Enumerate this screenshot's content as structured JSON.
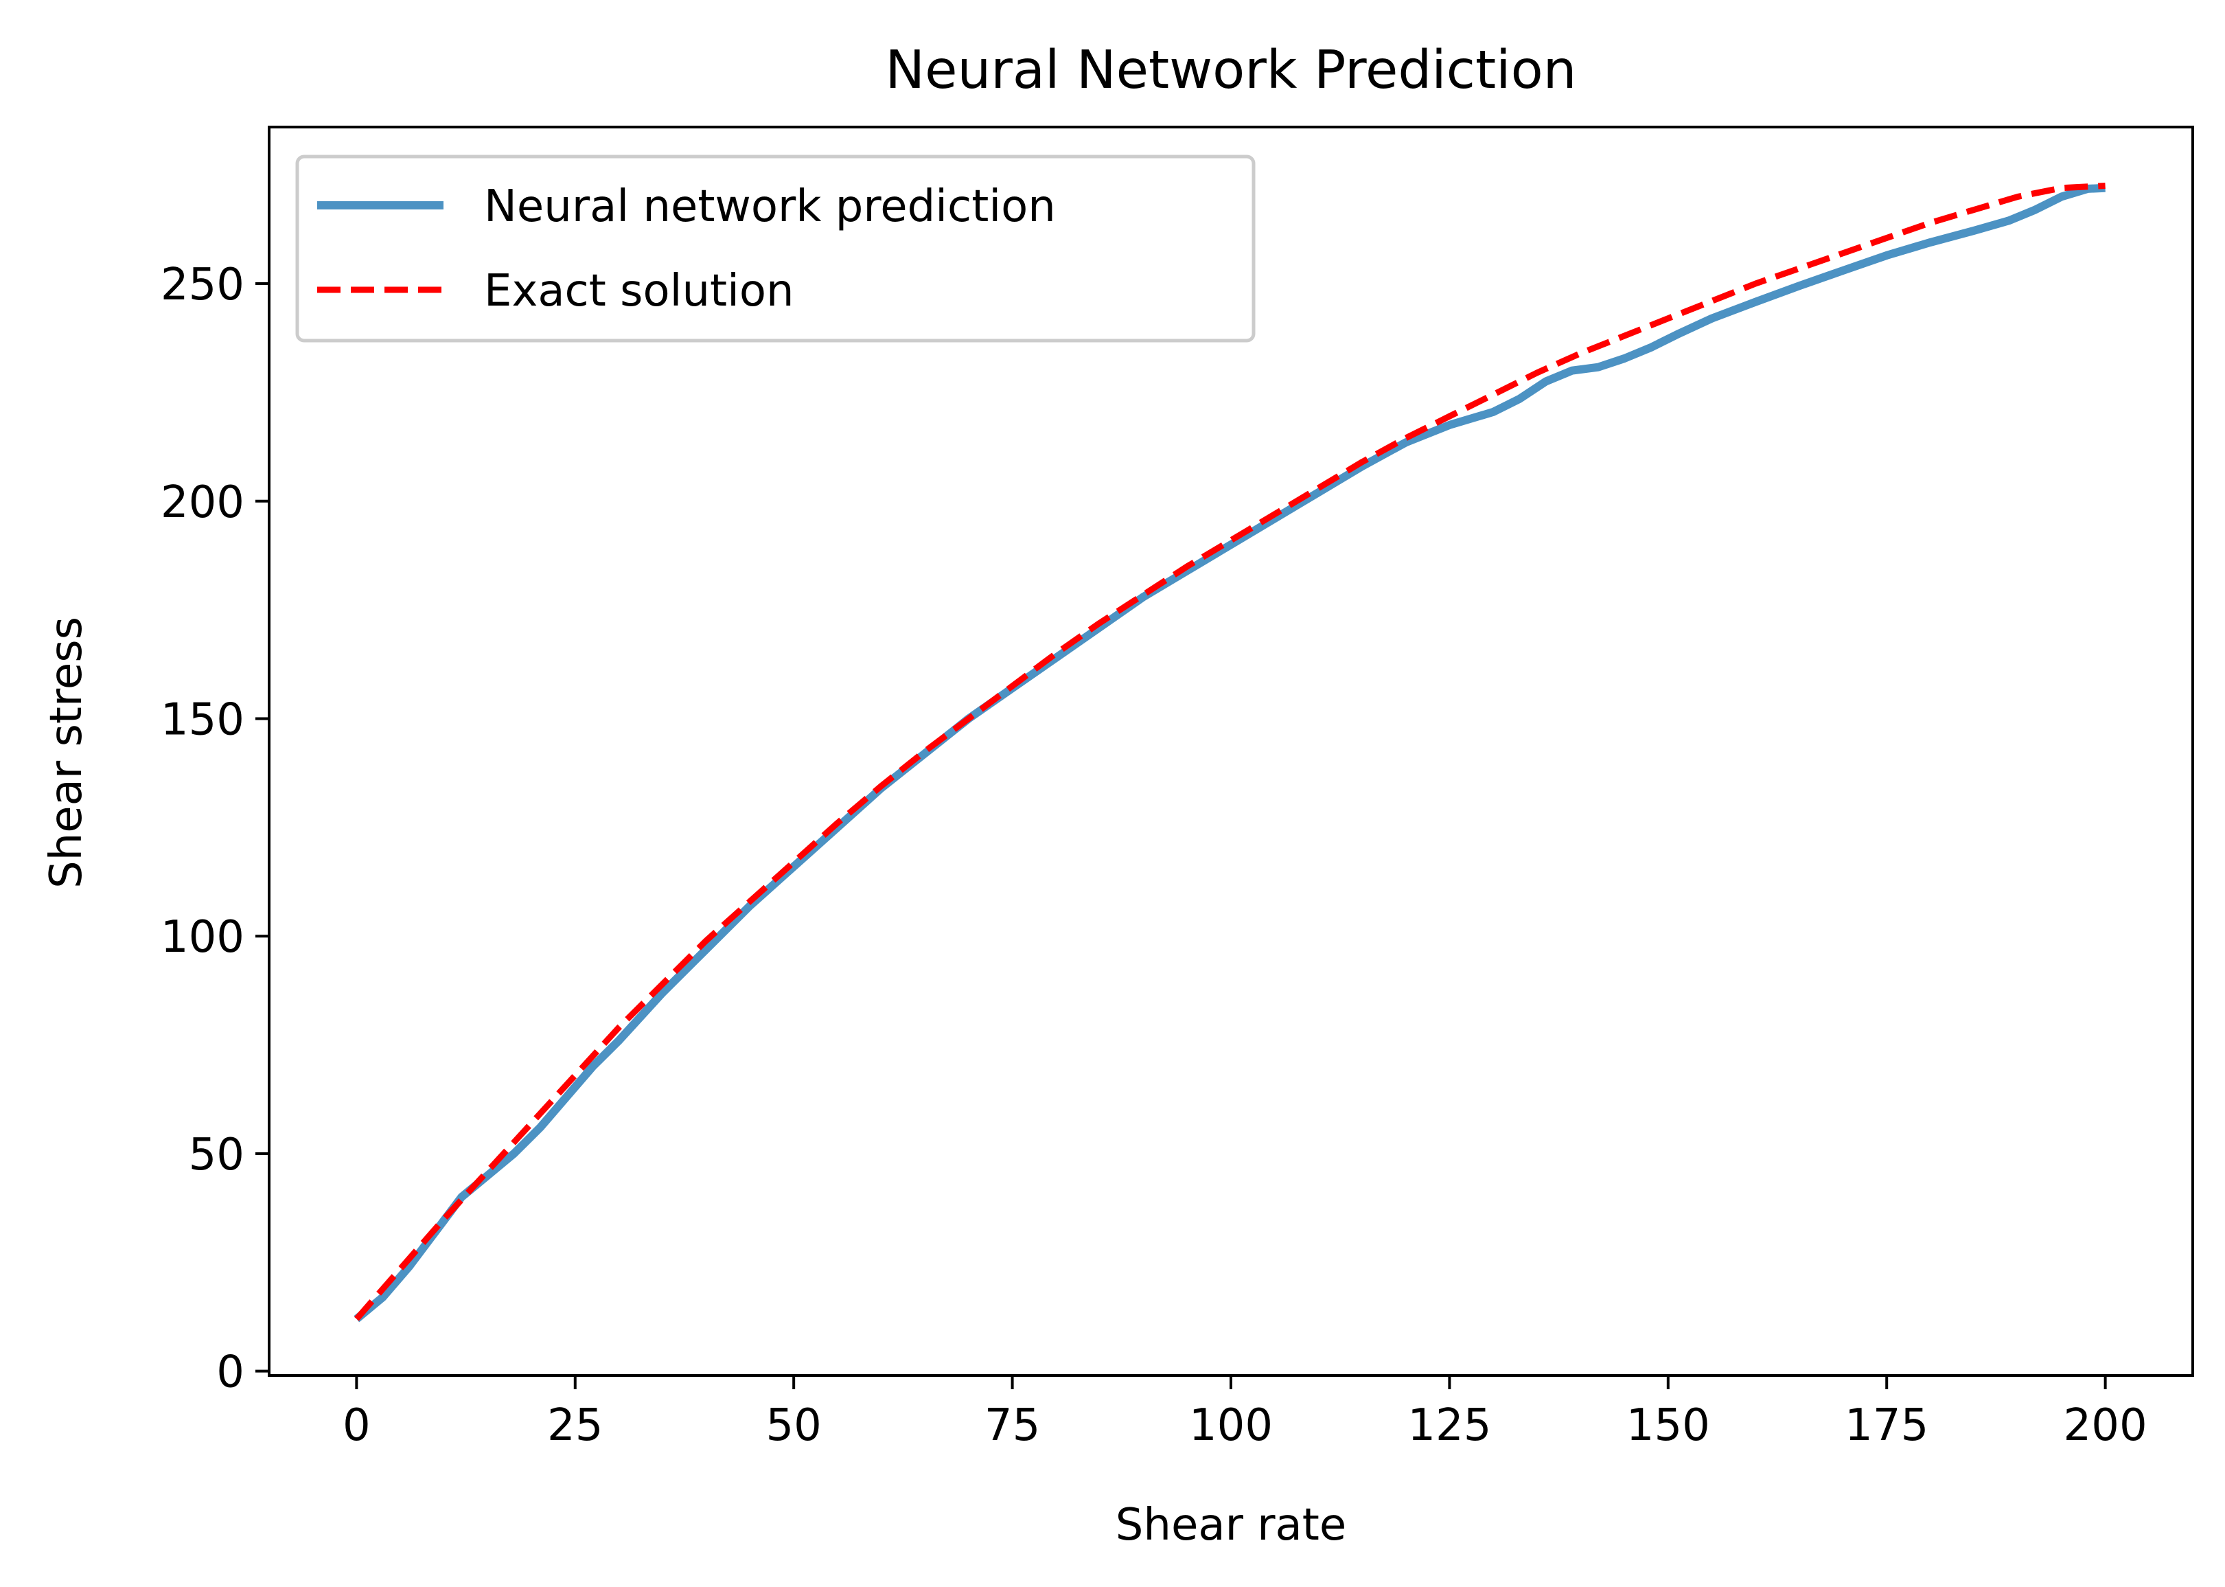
{
  "chart_data": {
    "type": "line",
    "title": "Neural Network Prediction",
    "xlabel": "Shear rate",
    "ylabel": "Shear stress",
    "xlim": [
      -10,
      210
    ],
    "ylim": [
      -1,
      286
    ],
    "xticks": [
      0,
      25,
      50,
      75,
      100,
      125,
      150,
      175,
      200
    ],
    "yticks": [
      0,
      50,
      100,
      150,
      200,
      250
    ],
    "grid": false,
    "legend_position": "top-left",
    "series": [
      {
        "name": "Neural network prediction",
        "color": "#4c92c3",
        "style": "solid",
        "x": [
          0,
          3,
          6,
          9,
          12,
          15,
          18,
          21,
          24,
          27,
          30,
          35,
          40,
          45,
          50,
          55,
          60,
          65,
          70,
          75,
          80,
          85,
          90,
          95,
          100,
          105,
          110,
          115,
          120,
          125,
          130,
          133,
          136,
          139,
          142,
          145,
          148,
          151,
          155,
          160,
          165,
          170,
          175,
          180,
          185,
          189,
          192,
          195,
          198,
          200
        ],
        "y": [
          12,
          17,
          24,
          32,
          40,
          45,
          50,
          56,
          63,
          70,
          76,
          87,
          97,
          107,
          116,
          125,
          134,
          142,
          150,
          157,
          164,
          171,
          178,
          184,
          190,
          196,
          202,
          208,
          213.5,
          217.5,
          220.5,
          223.5,
          227.5,
          230,
          230.8,
          232.8,
          235.3,
          238.3,
          242,
          245.8,
          249.5,
          253,
          256.5,
          259.5,
          262.2,
          264.5,
          267,
          270,
          271.8,
          272
        ]
      },
      {
        "name": "Exact solution",
        "color": "#ff0000",
        "style": "dashed",
        "x": [
          0,
          5,
          10,
          15,
          20,
          25,
          30,
          35,
          40,
          45,
          50,
          55,
          60,
          65,
          70,
          75,
          80,
          85,
          90,
          95,
          100,
          105,
          110,
          115,
          120,
          125,
          130,
          135,
          140,
          145,
          150,
          155,
          160,
          165,
          170,
          175,
          180,
          185,
          190,
          195,
          200
        ],
        "y": [
          12,
          23.5,
          35,
          46,
          57,
          68,
          79,
          89,
          99,
          108,
          117,
          126,
          134.5,
          142.5,
          150,
          157.5,
          165,
          172,
          178.5,
          185,
          191,
          197,
          203,
          209,
          214.5,
          219.5,
          224.5,
          229.5,
          234,
          238,
          242,
          246,
          250,
          253.5,
          257,
          260.5,
          264,
          267,
          270,
          272,
          272.5
        ]
      }
    ]
  }
}
